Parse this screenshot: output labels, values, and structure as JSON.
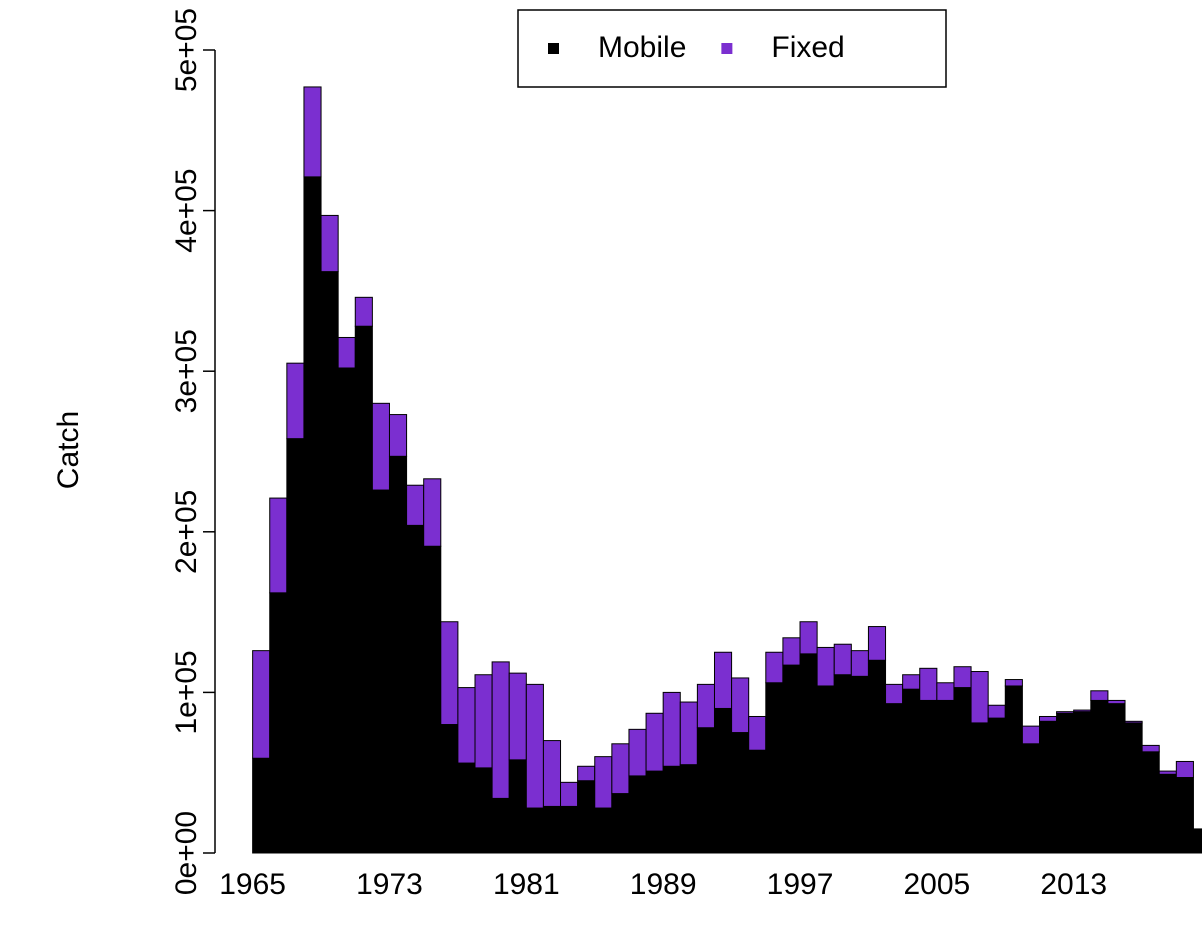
{
  "chart_data": {
    "type": "bar",
    "stacked": true,
    "ylabel": "Catch",
    "x": [
      1965,
      1966,
      1967,
      1968,
      1969,
      1970,
      1971,
      1972,
      1973,
      1974,
      1975,
      1976,
      1977,
      1978,
      1979,
      1980,
      1981,
      1982,
      1983,
      1984,
      1985,
      1986,
      1987,
      1988,
      1989,
      1990,
      1991,
      1992,
      1993,
      1994,
      1995,
      1996,
      1997,
      1998,
      1999,
      2000,
      2001,
      2002,
      2003,
      2004,
      2005,
      2006,
      2007,
      2008,
      2009,
      2010,
      2011,
      2012,
      2013,
      2014,
      2015,
      2016,
      2017,
      2018,
      2019,
      2020
    ],
    "series": [
      {
        "name": "Mobile",
        "color": "#000000",
        "values": [
          59000,
          162000,
          258000,
          421000,
          362000,
          302000,
          328000,
          226000,
          247000,
          204000,
          191000,
          80000,
          56000,
          53000,
          34000,
          58000,
          28000,
          29000,
          29000,
          45000,
          28000,
          37000,
          48000,
          51000,
          54000,
          55000,
          78000,
          90000,
          75000,
          64000,
          106000,
          117000,
          124000,
          104000,
          111000,
          110000,
          120000,
          93000,
          102000,
          95000,
          95000,
          103000,
          81000,
          84000,
          104000,
          68000,
          82000,
          87000,
          88000,
          95000,
          93000,
          81000,
          63000,
          49000,
          47000,
          15000
        ]
      },
      {
        "name": "Fixed",
        "color": "#7b2fd0",
        "values": [
          67000,
          59000,
          47000,
          56000,
          35000,
          19000,
          18000,
          54000,
          26000,
          25000,
          42000,
          64000,
          47000,
          58000,
          85000,
          54000,
          77000,
          41000,
          15000,
          9000,
          32000,
          31000,
          29000,
          36000,
          46000,
          39000,
          27000,
          35000,
          34000,
          21000,
          19000,
          17000,
          20000,
          24000,
          19000,
          16000,
          21000,
          12000,
          9000,
          20000,
          11000,
          13000,
          32000,
          8000,
          4000,
          11000,
          3000,
          1000,
          1000,
          6000,
          2000,
          1000,
          4000,
          2000,
          10000,
          0
        ]
      }
    ],
    "xlim": [
      1962.8,
      2020.5
    ],
    "xticks": [
      1965,
      1973,
      1981,
      1989,
      1997,
      2005,
      2013
    ],
    "ylim": [
      0,
      500000
    ],
    "yticks": [
      {
        "value": 0,
        "label": "0e+00"
      },
      {
        "value": 100000,
        "label": "1e+05"
      },
      {
        "value": 200000,
        "label": "2e+05"
      },
      {
        "value": 300000,
        "label": "3e+05"
      },
      {
        "value": 400000,
        "label": "4e+05"
      },
      {
        "value": 500000,
        "label": "5e+05"
      }
    ],
    "legend": "top"
  }
}
